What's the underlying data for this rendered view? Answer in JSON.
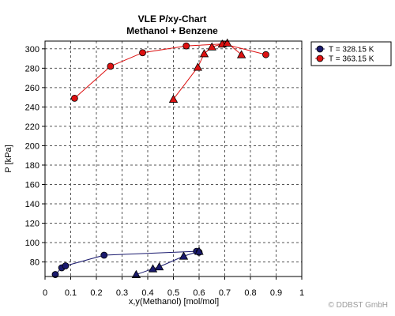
{
  "chart_data": {
    "type": "scatter",
    "title": "VLE P/xy-Chart",
    "subtitle": "Methanol + Benzene",
    "xlabel": "x,y(Methanol) [mol/mol]",
    "ylabel": "P [kPa]",
    "xlim": [
      0,
      1
    ],
    "ylim": [
      65,
      308
    ],
    "x_ticks": [
      "0",
      "0.1",
      "0.2",
      "0.3",
      "0.4",
      "0.5",
      "0.6",
      "0.7",
      "0.8",
      "0.9",
      "1"
    ],
    "y_ticks": [
      "80",
      "100",
      "120",
      "140",
      "160",
      "180",
      "200",
      "220",
      "240",
      "260",
      "280",
      "300"
    ],
    "grid": true,
    "legend_position": "top-right",
    "series": [
      {
        "name": "T = 328.15 K",
        "color": "#1a1a6e",
        "liquid_marker": "circle",
        "vapor_marker": "triangle",
        "liquid": [
          {
            "x": 0.04,
            "y": 67
          },
          {
            "x": 0.065,
            "y": 74
          },
          {
            "x": 0.08,
            "y": 76
          },
          {
            "x": 0.23,
            "y": 87
          },
          {
            "x": 0.59,
            "y": 91
          },
          {
            "x": 0.6,
            "y": 90
          }
        ],
        "vapor": [
          {
            "x": 0.355,
            "y": 67
          },
          {
            "x": 0.42,
            "y": 73
          },
          {
            "x": 0.445,
            "y": 75
          },
          {
            "x": 0.54,
            "y": 86
          },
          {
            "x": 0.6,
            "y": 91
          }
        ]
      },
      {
        "name": "T = 363.15 K",
        "color": "#dd1111",
        "liquid_marker": "circle",
        "vapor_marker": "triangle",
        "liquid": [
          {
            "x": 0.115,
            "y": 249
          },
          {
            "x": 0.255,
            "y": 282
          },
          {
            "x": 0.38,
            "y": 296
          },
          {
            "x": 0.55,
            "y": 303
          },
          {
            "x": 0.695,
            "y": 305
          },
          {
            "x": 0.86,
            "y": 294
          }
        ],
        "vapor": [
          {
            "x": 0.5,
            "y": 248
          },
          {
            "x": 0.595,
            "y": 281
          },
          {
            "x": 0.62,
            "y": 295
          },
          {
            "x": 0.65,
            "y": 302
          },
          {
            "x": 0.69,
            "y": 305
          },
          {
            "x": 0.71,
            "y": 306
          },
          {
            "x": 0.765,
            "y": 294
          }
        ]
      }
    ]
  },
  "copyright": "© DDBST GmbH"
}
